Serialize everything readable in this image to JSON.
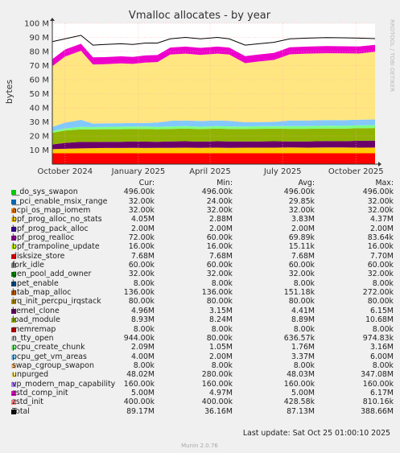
{
  "title": "Vmalloc allocates - by year",
  "ylabel": "bytes",
  "side_label": "RRDTOOL / TOBI OETIKER",
  "footer": "Munin 2.0.76",
  "last_update": "Last update: Sat Oct 25 01:00:10 2025",
  "headers": {
    "cur": "Cur:",
    "min": "Min:",
    "avg": "Avg:",
    "max": "Max:"
  },
  "legend": [
    {
      "name": "__do_sys_swapon",
      "color": "#00cc00",
      "cur": "496.00k",
      "min": "496.00k",
      "avg": "496.00k",
      "max": "496.00k"
    },
    {
      "name": "__pci_enable_msix_range",
      "color": "#0066b3",
      "cur": "32.00k",
      "min": "24.00k",
      "avg": "29.85k",
      "max": "32.00k"
    },
    {
      "name": "acpi_os_map_iomem",
      "color": "#ff8000",
      "cur": "32.00k",
      "min": "32.00k",
      "avg": "32.00k",
      "max": "32.00k"
    },
    {
      "name": "bpf_prog_alloc_no_stats",
      "color": "#ffcc00",
      "cur": "4.05M",
      "min": "2.88M",
      "avg": "3.83M",
      "max": "4.37M"
    },
    {
      "name": "bpf_prog_pack_alloc",
      "color": "#330099",
      "cur": "2.00M",
      "min": "2.00M",
      "avg": "2.00M",
      "max": "2.00M"
    },
    {
      "name": "bpf_prog_realloc",
      "color": "#990099",
      "cur": "72.00k",
      "min": "60.00k",
      "avg": "69.89k",
      "max": "83.64k"
    },
    {
      "name": "bpf_trampoline_update",
      "color": "#ccff00",
      "cur": "16.00k",
      "min": "16.00k",
      "avg": "15.11k",
      "max": "16.00k"
    },
    {
      "name": "disksize_store",
      "color": "#ff0000",
      "cur": "7.68M",
      "min": "7.68M",
      "avg": "7.68M",
      "max": "7.70M"
    },
    {
      "name": "fork_idle",
      "color": "#808080",
      "cur": "60.00k",
      "min": "60.00k",
      "avg": "60.00k",
      "max": "60.00k"
    },
    {
      "name": "gen_pool_add_owner",
      "color": "#008f00",
      "cur": "32.00k",
      "min": "32.00k",
      "avg": "32.00k",
      "max": "32.00k"
    },
    {
      "name": "hpet_enable",
      "color": "#00487d",
      "cur": "8.00k",
      "min": "8.00k",
      "avg": "8.00k",
      "max": "8.00k"
    },
    {
      "name": "htab_map_alloc",
      "color": "#b35a00",
      "cur": "136.00k",
      "min": "136.00k",
      "avg": "151.18k",
      "max": "272.00k"
    },
    {
      "name": "irq_init_percpu_irqstack",
      "color": "#b38f00",
      "cur": "80.00k",
      "min": "80.00k",
      "avg": "80.00k",
      "max": "80.00k"
    },
    {
      "name": "kernel_clone",
      "color": "#6b006b",
      "cur": "4.96M",
      "min": "3.15M",
      "avg": "4.41M",
      "max": "6.15M"
    },
    {
      "name": "load_module",
      "color": "#8fb300",
      "cur": "8.93M",
      "min": "8.24M",
      "avg": "8.89M",
      "max": "10.68M"
    },
    {
      "name": "memremap",
      "color": "#b30000",
      "cur": "8.00k",
      "min": "8.00k",
      "avg": "8.00k",
      "max": "8.00k"
    },
    {
      "name": "n_tty_open",
      "color": "#bebebe",
      "cur": "944.00k",
      "min": "80.00k",
      "avg": "636.57k",
      "max": "974.83k"
    },
    {
      "name": "pcpu_create_chunk",
      "color": "#80ff80",
      "cur": "2.09M",
      "min": "1.05M",
      "avg": "1.76M",
      "max": "3.16M"
    },
    {
      "name": "pcpu_get_vm_areas",
      "color": "#80c9ff",
      "cur": "4.00M",
      "min": "2.00M",
      "avg": "3.37M",
      "max": "6.00M"
    },
    {
      "name": "swap_cgroup_swapon",
      "color": "#ffc080",
      "cur": "8.00k",
      "min": "8.00k",
      "avg": "8.00k",
      "max": "8.00k"
    },
    {
      "name": "unpurged",
      "color": "#ffe680",
      "cur": "48.02M",
      "min": "280.00k",
      "avg": "48.03M",
      "max": "347.08M"
    },
    {
      "name": "vp_modern_map_capability",
      "color": "#aa80ff",
      "cur": "160.00k",
      "min": "160.00k",
      "avg": "160.00k",
      "max": "160.00k"
    },
    {
      "name": "zstd_comp_init",
      "color": "#ee00cc",
      "cur": "5.00M",
      "min": "4.97M",
      "avg": "5.00M",
      "max": "6.17M"
    },
    {
      "name": "zstd_init",
      "color": "#ff8080",
      "cur": "400.00k",
      "min": "400.00k",
      "avg": "428.58k",
      "max": "810.16k"
    },
    {
      "name": "Total",
      "color": "#000000",
      "cur": "89.17M",
      "min": "36.16M",
      "avg": "87.13M",
      "max": "388.66M"
    }
  ],
  "chart_data": {
    "type": "area",
    "title": "Vmalloc allocates - by year",
    "xlabel": "",
    "ylabel": "bytes",
    "x_ticks": [
      "October 2024",
      "January 2025",
      "April 2025",
      "July 2025",
      "October 2025"
    ],
    "y_ticks": [
      "10 M",
      "20 M",
      "30 M",
      "40 M",
      "50 M",
      "60 M",
      "70 M",
      "80 M",
      "90 M",
      "100 M"
    ],
    "ylim": [
      0,
      100
    ],
    "y_unit": "M bytes",
    "x_range": [
      "2024-09-15",
      "2025-10-25"
    ],
    "stacked": true,
    "grid": true,
    "legend_position": "bottom",
    "x": [
      "2024-09-15",
      "2024-10-01",
      "2024-10-21",
      "2024-11-05",
      "2024-11-20",
      "2024-12-10",
      "2024-12-25",
      "2025-01-10",
      "2025-01-25",
      "2025-02-10",
      "2025-03-01",
      "2025-03-20",
      "2025-04-10",
      "2025-04-25",
      "2025-05-15",
      "2025-06-01",
      "2025-06-20",
      "2025-07-10",
      "2025-08-01",
      "2025-08-25",
      "2025-09-15",
      "2025-10-05",
      "2025-10-25"
    ],
    "series": [
      {
        "name": "disksize_store",
        "color": "#ff0000",
        "values": [
          7.7,
          7.7,
          7.7,
          7.7,
          7.7,
          7.7,
          7.7,
          7.7,
          7.7,
          7.7,
          7.7,
          7.7,
          7.7,
          7.7,
          7.7,
          7.7,
          7.7,
          7.7,
          7.7,
          7.7,
          7.7,
          7.7,
          7.7
        ]
      },
      {
        "name": "bpf_prog_alloc_no_stats",
        "color": "#ffcc00",
        "values": [
          2.9,
          3.2,
          3.5,
          3.7,
          3.8,
          3.8,
          3.9,
          3.8,
          3.9,
          3.9,
          4.0,
          3.9,
          4.0,
          3.9,
          4.0,
          4.0,
          4.0,
          4.1,
          4.0,
          4.1,
          4.1,
          4.0,
          4.05
        ]
      },
      {
        "name": "kernel_clone",
        "color": "#6b006b",
        "values": [
          3.4,
          4.2,
          4.6,
          4.3,
          4.4,
          4.4,
          4.5,
          4.5,
          4.3,
          4.5,
          4.6,
          4.4,
          4.6,
          4.5,
          4.4,
          4.5,
          4.6,
          4.4,
          4.5,
          4.6,
          4.5,
          4.9,
          4.96
        ]
      },
      {
        "name": "load_module",
        "color": "#8fb300",
        "values": [
          8.3,
          8.8,
          8.9,
          8.9,
          8.9,
          8.9,
          8.9,
          8.9,
          8.9,
          8.9,
          8.9,
          8.9,
          8.9,
          8.9,
          8.9,
          8.9,
          8.9,
          8.9,
          8.9,
          8.9,
          8.9,
          8.9,
          8.93
        ]
      },
      {
        "name": "pcpu_create_chunk",
        "color": "#80ff80",
        "values": [
          1.2,
          1.5,
          1.8,
          1.7,
          1.7,
          1.8,
          1.7,
          1.8,
          1.7,
          1.8,
          1.8,
          1.7,
          1.8,
          1.8,
          1.7,
          1.8,
          1.8,
          1.9,
          1.9,
          2.0,
          2.0,
          2.1,
          2.09
        ]
      },
      {
        "name": "pcpu_get_vm_areas",
        "color": "#80c9ff",
        "values": [
          3.0,
          4.0,
          5.0,
          2.5,
          2.5,
          2.5,
          2.5,
          2.5,
          3.0,
          4.0,
          4.0,
          4.0,
          4.0,
          4.0,
          3.0,
          3.0,
          3.0,
          4.0,
          4.0,
          4.0,
          4.0,
          4.0,
          4.0
        ]
      },
      {
        "name": "unpurged",
        "color": "#ffe680",
        "values": [
          43.0,
          47.0,
          49.0,
          42.0,
          42.0,
          42.5,
          42.0,
          43.0,
          43.0,
          47.0,
          47.5,
          47.0,
          47.5,
          47.0,
          42.0,
          43.0,
          44.0,
          47.0,
          47.5,
          47.5,
          47.5,
          47.0,
          48.02
        ]
      },
      {
        "name": "zstd_comp_init",
        "color": "#ee00cc",
        "values": [
          5.0,
          5.0,
          5.0,
          5.0,
          5.0,
          5.0,
          5.0,
          5.0,
          5.0,
          5.0,
          5.0,
          5.0,
          5.0,
          5.0,
          5.0,
          5.0,
          5.0,
          5.0,
          5.0,
          5.0,
          5.0,
          5.0,
          5.0
        ]
      },
      {
        "name": "Total",
        "color": "#000000",
        "type": "line",
        "values": [
          87.0,
          89.0,
          91.5,
          84.5,
          85.0,
          85.5,
          85.0,
          86.0,
          86.0,
          89.0,
          90.0,
          89.0,
          90.0,
          89.0,
          84.5,
          85.5,
          86.5,
          89.0,
          89.5,
          89.8,
          89.7,
          89.5,
          89.17
        ]
      }
    ]
  }
}
